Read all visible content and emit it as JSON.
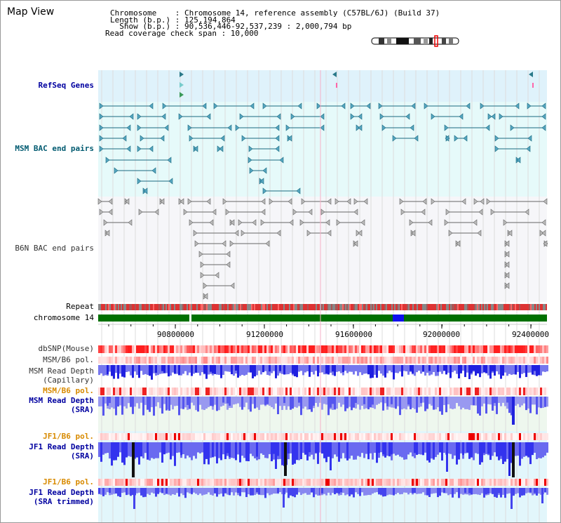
{
  "header": {
    "title": "Map View",
    "info_lines": [
      "Chromosome    : Chromosome 14, reference assembly (C57BL/6J) (Build 37)",
      "Length (b.p.) : 125,194,864",
      "  Show (b.p.) : 90,536,446-92,537,239 : 2,000,794 bp",
      "Read coverage check span : 10,000"
    ]
  },
  "tracks": {
    "refseq": "RefSeq Genes",
    "msm_bac": "MSM BAC end pairs",
    "b6n_bac": "B6N BAC end pairs",
    "repeat": "Repeat",
    "chromosome": "chromosome 14",
    "dbsnp": "dbSNP(Mouse)",
    "msm_b6_pol1": "MSM/B6 pol.",
    "msm_depth_cap_1": "MSM Read Depth",
    "msm_depth_cap_2": "(Capillary)",
    "msm_b6_pol2": "MSM/B6 pol.",
    "msm_depth_sra_1": "MSM Read Depth",
    "msm_depth_sra_2": "(SRA)",
    "jf1_b6_pol1": "JF1/B6 pol.",
    "jf1_depth_1": "JF1 Read Depth",
    "jf1_depth_2": "(SRA)",
    "jf1_b6_pol2": "JF1/B6 pol.",
    "jf1_trim_1": "JF1 Read Depth",
    "jf1_trim_2": "(SRA trimmed)"
  },
  "axis": {
    "ticks": [
      "90800000",
      "91200000",
      "91600000",
      "92000000",
      "92400000"
    ]
  },
  "colors": {
    "refseq_bg": "#dff2fb",
    "msm_bg": "#e6fafa",
    "b6n_bg": "#f5f5f8",
    "chrom_green": "#007000",
    "label_blue": "#0000a0",
    "label_orange": "#d88a00",
    "depth_blue": "#3333ee"
  }
}
